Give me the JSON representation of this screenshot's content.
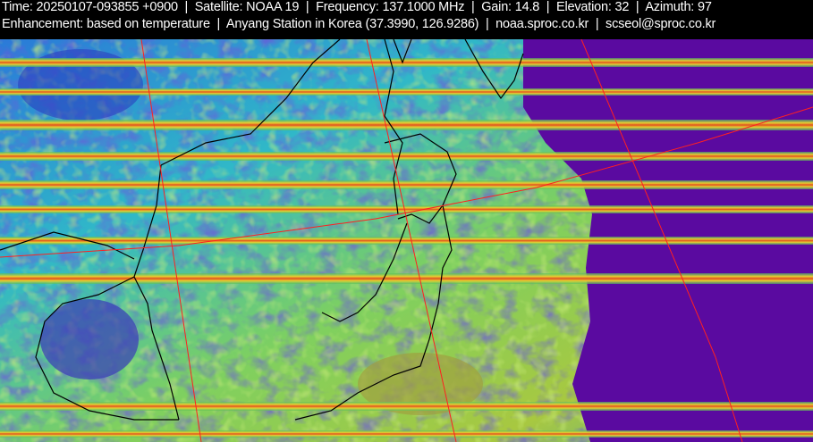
{
  "header": {
    "line1": "Time: 20250107-093855 +0900  |  Satellite: NOAA 19  |  Frequency: 137.1000 MHz  |  Gain: 14.8  |  Elevation: 32  |  Azimuth: 97",
    "line2": "Enhancement: based on temperature  |  Anyang Station in Korea (37.3990, 126.9286)  |  noaa.sproc.co.kr  |  scseol@sproc.co.kr"
  },
  "image": {
    "colors": {
      "cold_cloud": "#3a2fb0",
      "mid_cloud": "#2ab0c8",
      "warm_land": "#a8d040",
      "sea_clear": "#5a0aa0",
      "noise_band": "#e0a020",
      "grid_line": "#ff2020",
      "coastline": "#000000"
    }
  }
}
